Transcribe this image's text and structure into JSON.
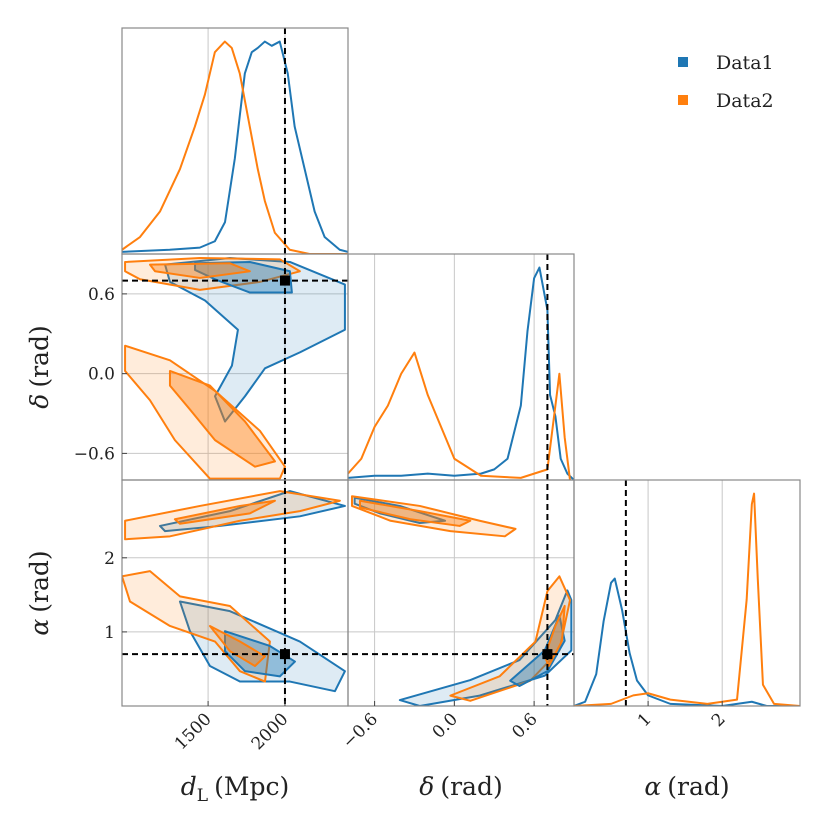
{
  "chart_data": {
    "type": "corner",
    "legend": "upper right",
    "grid": true,
    "parameters": {
      "dL": {
        "label": {
          "symbol": "d",
          "subscript": "L",
          "unit": "(Mpc)"
        },
        "lim": [
          940,
          2410
        ],
        "ticks": [
          1500,
          2000
        ],
        "truth": 2000
      },
      "delta": {
        "label": {
          "symbol": "δ",
          "unit": "(rad)"
        },
        "lim": [
          -0.8,
          0.9
        ],
        "ticks": [
          {
            "value": -0.6,
            "label": "−0.6"
          },
          {
            "value": 0,
            "label": "0.0"
          },
          0.6
        ],
        "truth": 0.7
      },
      "alpha": {
        "label": {
          "symbol": "α",
          "unit": "(rad)"
        },
        "lim": [
          0,
          3.05
        ],
        "ticks": [
          1,
          2
        ],
        "truth": 0.7
      }
    },
    "series": [
      {
        "name": "Data1",
        "color": "#1f77b4",
        "density": {
          "dL": {
            "x": [
              940,
              1250,
              1446,
              1544,
              1610,
              1674,
              1706,
              1739,
              1784,
              1823,
              1869,
              1914,
              1966,
              2018,
              2063,
              2128,
              2193,
              2258,
              2356,
              2410
            ],
            "y": [
              0.01,
              0.02,
              0.03,
              0.06,
              0.15,
              0.45,
              0.65,
              0.85,
              0.95,
              0.97,
              1.0,
              0.98,
              1.0,
              0.85,
              0.6,
              0.4,
              0.2,
              0.08,
              0.02,
              0.01
            ]
          },
          "delta": {
            "x": [
              -0.8,
              -0.6,
              -0.4,
              -0.2,
              0.0,
              0.2,
              0.3,
              0.4,
              0.5,
              0.55,
              0.6,
              0.64,
              0.7,
              0.72,
              0.76,
              0.8,
              0.85,
              0.9
            ],
            "y": [
              0.01,
              0.02,
              0.02,
              0.03,
              0.02,
              0.03,
              0.05,
              0.1,
              0.35,
              0.7,
              0.95,
              1.0,
              0.8,
              0.4,
              0.3,
              0.1,
              0.03,
              0.0
            ]
          },
          "alpha": {
            "x": [
              0,
              0.15,
              0.3,
              0.4,
              0.5,
              0.55,
              0.65,
              0.75,
              0.85,
              1.0,
              1.3,
              2.0,
              2.4,
              2.6,
              3.05
            ],
            "y": [
              0,
              0.02,
              0.15,
              0.4,
              0.58,
              0.6,
              0.45,
              0.25,
              0.12,
              0.05,
              0.01,
              0.0,
              0.02,
              0.0,
              0
            ]
          }
        },
        "contours": {
          "dL_delta": {
            "outer": [
              {
                "x": [
                  1220,
                  1642,
                  2032,
                  2390,
                  2390,
                  2097,
                  1870,
                  1740,
                  1610,
                  1545,
                  1655,
                  1694,
                  1480,
                  1252
                ],
                "y": [
                  0.82,
                  0.87,
                  0.84,
                  0.67,
                  0.33,
                  0.16,
                  0.04,
                  -0.17,
                  -0.36,
                  -0.17,
                  0.06,
                  0.33,
                  0.55,
                  0.69
                ]
              }
            ],
            "inner": [
              {
                "x": [
                  1415,
                  1772,
                  2032,
                  2045,
                  1772,
                  1545,
                  1415
                ],
                "y": [
                  0.83,
                  0.84,
                  0.77,
                  0.61,
                  0.61,
                  0.71,
                  0.78
                ]
              }
            ]
          },
          "dL_alpha": {
            "outer": [
              {
                "x": [
                  1187,
                  1642,
                  2032,
                  2390,
                  2097,
                  1577,
                  1220
                ],
                "y": [
                  2.43,
                  2.63,
                  2.9,
                  2.7,
                  2.56,
                  2.43,
                  2.36
                ]
              },
              {
                "x": [
                  1317,
                  1642,
                  2097,
                  2390,
                  2325,
                  2032,
                  1707,
                  1512,
                  1382
                ],
                "y": [
                  1.41,
                  1.28,
                  0.87,
                  0.47,
                  0.2,
                  0.33,
                  0.33,
                  0.54,
                  1.01
                ]
              }
            ],
            "inner": [
              {
                "x": [
                  1610,
                  1902,
                  2065,
                  1967,
                  1740,
                  1610
                ],
                "y": [
                  1.01,
                  0.81,
                  0.6,
                  0.4,
                  0.47,
                  0.74
                ]
              }
            ]
          },
          "delta_alpha": {
            "outer": [
              {
                "x": [
                  -0.75,
                  -0.41,
                  -0.07,
                  -0.26,
                  -0.56,
                  -0.75
                ],
                "y": [
                  2.81,
                  2.7,
                  2.5,
                  2.47,
                  2.6,
                  2.73
                ]
              },
              {
                "x": [
                  -0.41,
                  0.12,
                  0.49,
                  0.76,
                  0.85,
                  0.88,
                  0.88,
                  0.68,
                  0.19,
                  -0.26
                ],
                "y": [
                  0.08,
                  0.35,
                  0.62,
                  1.16,
                  1.56,
                  1.43,
                  0.75,
                  0.41,
                  0.14,
                  0.0
                ]
              }
            ],
            "inner": [
              {
                "x": [
                  0.42,
                  0.68,
                  0.79,
                  0.83,
                  0.7,
                  0.49
                ],
                "y": [
                  0.34,
                  0.75,
                  1.22,
                  0.88,
                  0.47,
                  0.27
                ]
              }
            ]
          }
        }
      },
      {
        "name": "Data2",
        "color": "#ff7f0e",
        "density": {
          "dL": {
            "x": [
              940,
              1057,
              1187,
              1317,
              1414,
              1479,
              1544,
              1609,
              1654,
              1706,
              1771,
              1823,
              1869,
              1934,
              2031,
              2160,
              2410
            ],
            "y": [
              0.02,
              0.08,
              0.2,
              0.4,
              0.6,
              0.75,
              0.95,
              1.0,
              0.97,
              0.85,
              0.6,
              0.4,
              0.25,
              0.1,
              0.02,
              0.0,
              0.0
            ]
          },
          "delta": {
            "x": [
              -0.8,
              -0.7,
              -0.6,
              -0.5,
              -0.4,
              -0.3,
              -0.2,
              -0.1,
              0.0,
              0.2,
              0.5,
              0.7,
              0.75,
              0.79,
              0.83,
              0.87
            ],
            "y": [
              0.03,
              0.1,
              0.25,
              0.35,
              0.5,
              0.6,
              0.4,
              0.25,
              0.1,
              0.02,
              0.01,
              0.05,
              0.3,
              0.5,
              0.2,
              0.0
            ]
          },
          "alpha": {
            "x": [
              0,
              0.5,
              0.8,
              1.0,
              1.3,
              1.8,
              2.2,
              2.33,
              2.4,
              2.43,
              2.48,
              2.55,
              2.7,
              3.05
            ],
            "y": [
              0.0,
              0.01,
              0.05,
              0.06,
              0.03,
              0.01,
              0.03,
              0.5,
              0.95,
              1.0,
              0.6,
              0.1,
              0.01,
              0
            ]
          }
        },
        "contours": {
          "dL_delta": {
            "outer": [
              {
                "x": [
                  960,
                  1447,
                  1967,
                  2097,
                  1837,
                  1447,
                  1057,
                  960
                ],
                "y": [
                  0.84,
                  0.87,
                  0.86,
                  0.77,
                  0.69,
                  0.63,
                  0.71,
                  0.77
                ]
              },
              {
                "x": [
                  960,
                  1252,
                  1545,
                  1837,
                  2000,
                  1967,
                  1512,
                  1284,
                  1122,
                  960
                ],
                "y": [
                  0.21,
                  0.1,
                  -0.13,
                  -0.43,
                  -0.7,
                  -0.79,
                  -0.79,
                  -0.5,
                  -0.2,
                  0.02
                ]
              }
            ],
            "inner": [
              {
                "x": [
                  1122,
                  1642,
                  1772,
                  1447,
                  1155
                ],
                "y": [
                  0.82,
                  0.83,
                  0.77,
                  0.72,
                  0.77
                ]
              },
              {
                "x": [
                  1252,
                  1512,
                  1740,
                  1935,
                  1805,
                  1545,
                  1382,
                  1252
                ],
                "y": [
                  0.02,
                  -0.09,
                  -0.36,
                  -0.66,
                  -0.7,
                  -0.5,
                  -0.27,
                  -0.09
                ]
              }
            ]
          },
          "dL_alpha": {
            "outer": [
              {
                "x": [
                  960,
                  1447,
                  1967,
                  2357,
                  2097,
                  1707,
                  1252,
                  960
                ],
                "y": [
                  2.5,
                  2.7,
                  2.9,
                  2.77,
                  2.63,
                  2.5,
                  2.29,
                  2.25
                ]
              },
              {
                "x": [
                  940,
                  1122,
                  1317,
                  1642,
                  1902,
                  1870,
                  1707,
                  1545,
                  1252,
                  992
                ],
                "y": [
                  1.75,
                  1.82,
                  1.48,
                  1.35,
                  0.87,
                  0.33,
                  0.47,
                  0.87,
                  1.08,
                  1.41
                ]
              }
            ],
            "inner": [
              {
                "x": [
                  1284,
                  1707,
                  1935,
                  1772,
                  1317
                ],
                "y": [
                  2.52,
                  2.7,
                  2.77,
                  2.6,
                  2.46
                ]
              },
              {
                "x": [
                  1512,
                  1707,
                  1870,
                  1805,
                  1642
                ],
                "y": [
                  1.08,
                  0.87,
                  0.67,
                  0.54,
                  0.74
                ]
              }
            ]
          },
          "delta_alpha": {
            "outer": [
              {
                "x": [
                  -0.77,
                  -0.26,
                  0.19,
                  0.46,
                  0.38,
                  -0.03,
                  -0.48,
                  -0.77
                ],
                "y": [
                  2.83,
                  2.7,
                  2.5,
                  2.39,
                  2.29,
                  2.36,
                  2.5,
                  2.7
                ]
              },
              {
                "x": [
                  -0.03,
                  0.34,
                  0.61,
                  0.7,
                  0.79,
                  0.87,
                  0.79,
                  0.57,
                  0.12
                ],
                "y": [
                  0.14,
                  0.4,
                  0.87,
                  1.55,
                  1.75,
                  1.43,
                  0.75,
                  0.34,
                  0.07
                ]
              }
            ],
            "inner": [
              {
                "x": [
                  -0.71,
                  -0.26,
                  0.12,
                  0.04,
                  -0.33,
                  -0.71
                ],
                "y": [
                  2.77,
                  2.63,
                  2.5,
                  2.43,
                  2.52,
                  2.68
                ]
              },
              {
                "x": [
                  0.68,
                  0.76,
                  0.83,
                  0.81,
                  0.71
                ],
                "y": [
                  0.67,
                  1.08,
                  1.35,
                  0.88,
                  0.54
                ]
              }
            ]
          }
        }
      }
    ]
  }
}
